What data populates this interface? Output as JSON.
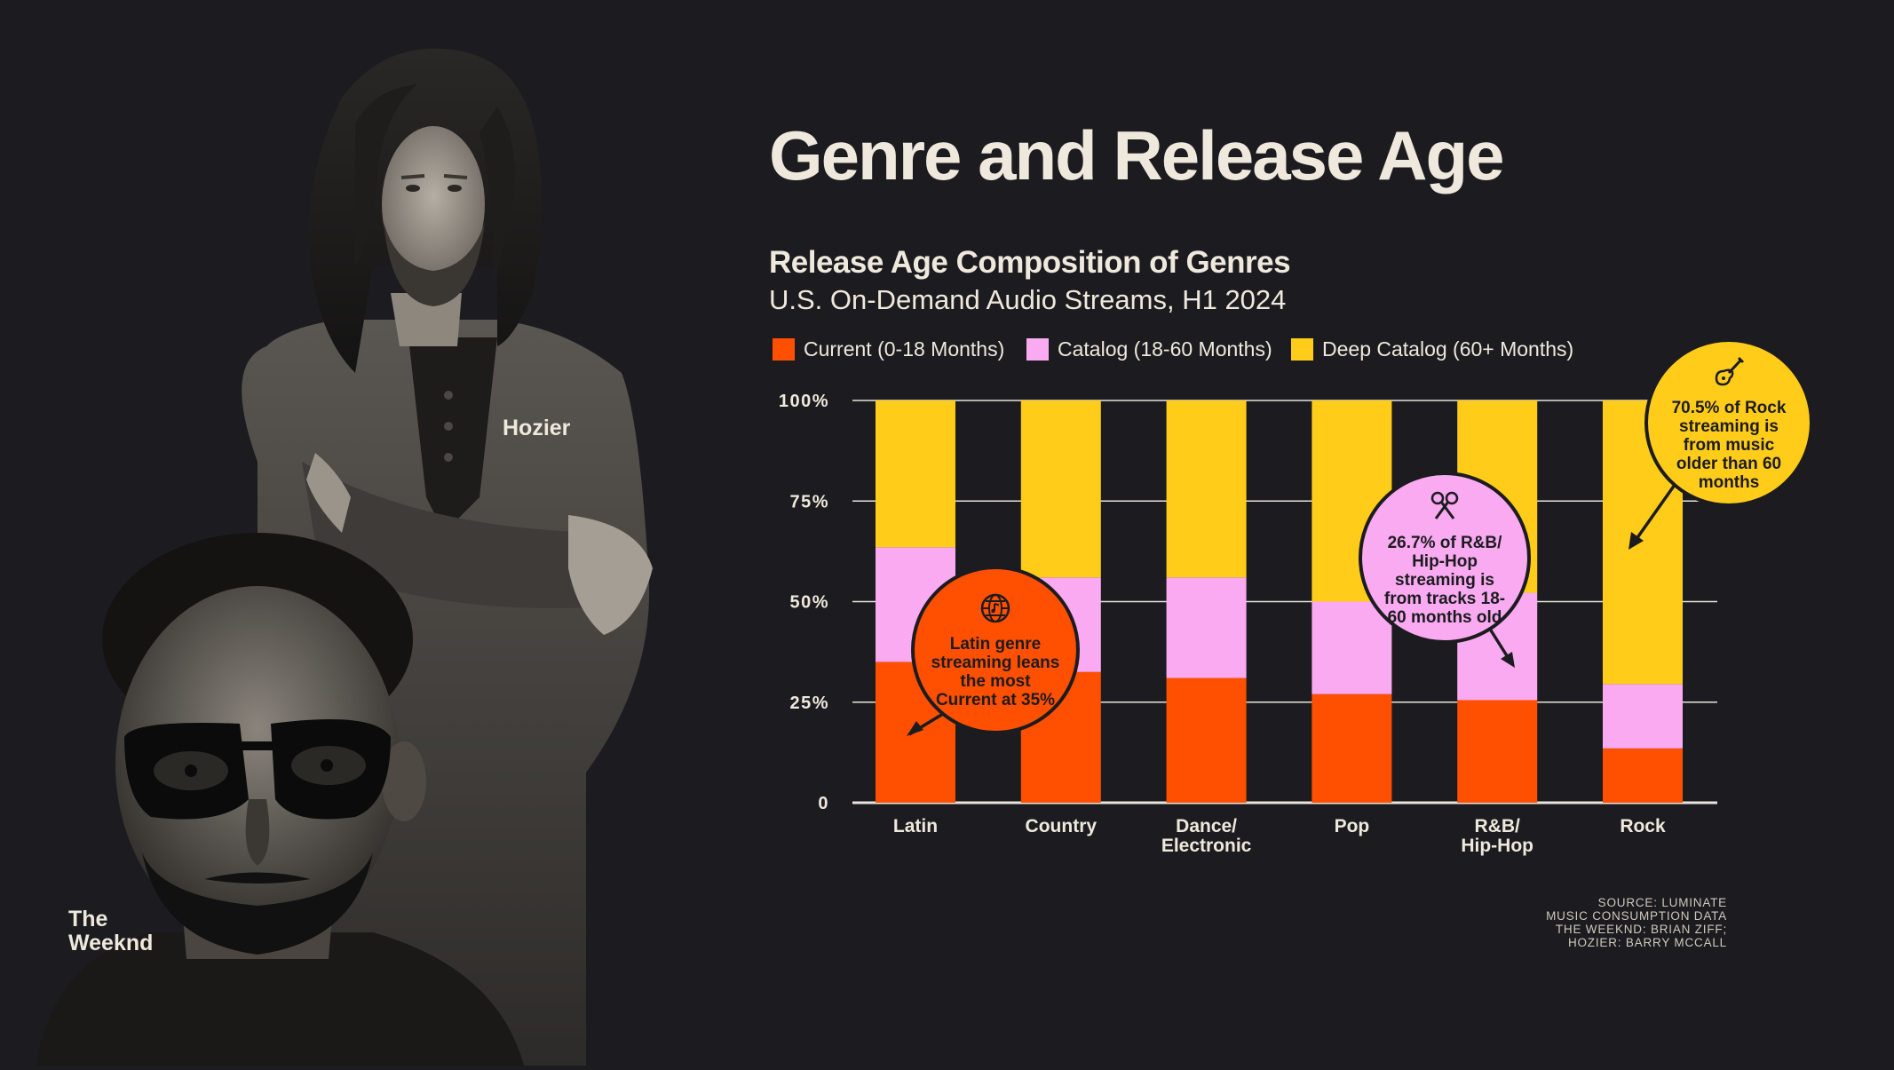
{
  "title": "Genre and Release Age",
  "people": {
    "hozier_label": "Hozier",
    "weeknd_label_line1": "The",
    "weeknd_label_line2": "Weeknd"
  },
  "colors": {
    "background": "#1c1c20",
    "text": "#efe8dc",
    "current": "#ff4f00",
    "catalog": "#f9aaf0",
    "deep_catalog": "#ffcc1a",
    "gridline": "#e8e4dc"
  },
  "chart_data": {
    "type": "bar",
    "stacked": true,
    "title": "Release Age Composition of Genres",
    "subtitle": "U.S. On-Demand Audio Streams, H1 2024",
    "categories": [
      "Latin",
      "Country",
      "Dance/\nElectronic",
      "Pop",
      "R&B/\nHip-Hop",
      "Rock"
    ],
    "series": [
      {
        "name": "Current (0-18 Months)",
        "color": "#ff4f00",
        "values": [
          35,
          32.5,
          31,
          27,
          25.5,
          13.5
        ]
      },
      {
        "name": "Catalog (18-60 Months)",
        "color": "#f9aaf0",
        "values": [
          28.5,
          23.5,
          25,
          23,
          26.7,
          16
        ]
      },
      {
        "name": "Deep Catalog (60+ Months)",
        "color": "#ffcc1a",
        "values": [
          36.5,
          44,
          44,
          50,
          47.8,
          70.5
        ]
      }
    ],
    "ylim": [
      0,
      100
    ],
    "yticks": [
      0,
      25,
      50,
      75,
      100
    ],
    "ytick_labels": [
      "0",
      "25%",
      "50%",
      "75%",
      "100%"
    ],
    "grid": true,
    "legend_position": "top"
  },
  "callouts": [
    {
      "icon": "globe-music-icon",
      "text": "Latin genre streaming leans the most Current at 35%"
    },
    {
      "icon": "microphones-icon",
      "text": "26.7% of R&B/ Hip-Hop streaming is from tracks 18-60 months old"
    },
    {
      "icon": "guitar-icon",
      "text": "70.5% of Rock streaming is from music older than 60 months"
    }
  ],
  "source": {
    "line1": "SOURCE: LUMINATE",
    "line2": "MUSIC CONSUMPTION DATA",
    "line3": "THE WEEKND: BRIAN ZIFF;",
    "line4": "HOZIER: BARRY MCCALL"
  }
}
